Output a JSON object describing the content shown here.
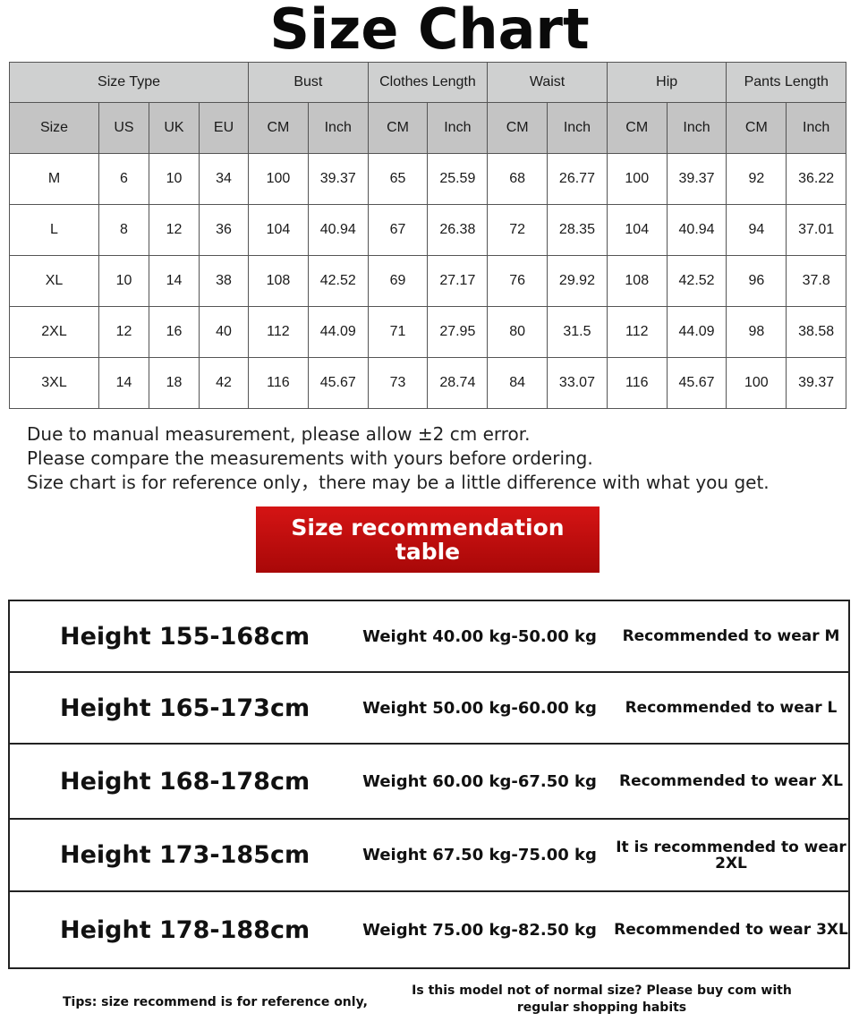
{
  "title": "Size Chart",
  "size_table": {
    "groups": [
      "Size Type",
      "Bust",
      "Clothes Length",
      "Waist",
      "Hip",
      "Pants Length"
    ],
    "subheaders": [
      "Size",
      "US",
      "UK",
      "EU",
      "CM",
      "Inch",
      "CM",
      "Inch",
      "CM",
      "Inch",
      "CM",
      "Inch",
      "CM",
      "Inch"
    ],
    "rows": [
      [
        "M",
        "6",
        "10",
        "34",
        "100",
        "39.37",
        "65",
        "25.59",
        "68",
        "26.77",
        "100",
        "39.37",
        "92",
        "36.22"
      ],
      [
        "L",
        "8",
        "12",
        "36",
        "104",
        "40.94",
        "67",
        "26.38",
        "72",
        "28.35",
        "104",
        "40.94",
        "94",
        "37.01"
      ],
      [
        "XL",
        "10",
        "14",
        "38",
        "108",
        "42.52",
        "69",
        "27.17",
        "76",
        "29.92",
        "108",
        "42.52",
        "96",
        "37.8"
      ],
      [
        "2XL",
        "12",
        "16",
        "40",
        "112",
        "44.09",
        "71",
        "27.95",
        "80",
        "31.5",
        "112",
        "44.09",
        "98",
        "38.58"
      ],
      [
        "3XL",
        "14",
        "18",
        "42",
        "116",
        "45.67",
        "73",
        "28.74",
        "84",
        "33.07",
        "116",
        "45.67",
        "100",
        "39.37"
      ]
    ]
  },
  "notes": [
    "Due to manual measurement, please allow ±2 cm error.",
    "Please compare the measurements with yours before ordering.",
    "Size chart is for reference only，there may be a little difference with what you get."
  ],
  "rec_title": "Size recommendation table",
  "recommendations": [
    {
      "height": "Height 155-168cm",
      "weight": "Weight 40.00 kg-50.00 kg",
      "rec": "Recommended to wear M"
    },
    {
      "height": "Height 165-173cm",
      "weight": "Weight 50.00 kg-60.00 kg",
      "rec": "Recommended to wear L"
    },
    {
      "height": "Height 168-178cm",
      "weight": "Weight 60.00 kg-67.50 kg",
      "rec": "Recommended to wear XL"
    },
    {
      "height": "Height 173-185cm",
      "weight": "Weight 67.50 kg-75.00 kg",
      "rec": "It is recommended to wear 2XL"
    },
    {
      "height": "Height 178-188cm",
      "weight": "Weight 75.00 kg-82.50 kg",
      "rec": "Recommended to wear 3XL"
    }
  ],
  "tips": {
    "left": "Tips: size recommend is for reference only,",
    "right": "Is this model not of normal size? Please buy com with regular shopping habits"
  },
  "colors": {
    "header_gray": "#c4c4c4",
    "banner_red": "#c20f0f"
  }
}
